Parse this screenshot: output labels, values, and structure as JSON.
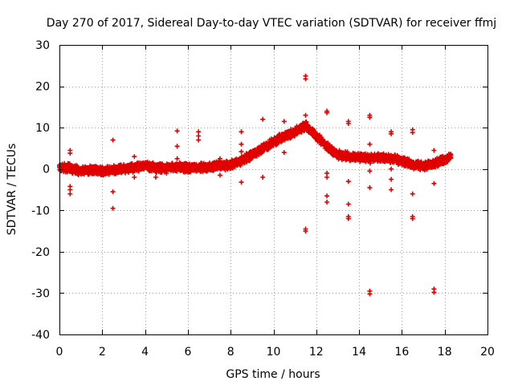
{
  "chart_data": {
    "type": "scatter",
    "title": "Day 270 of 2017, Sidereal Day-to-day VTEC variation (SDTVAR) for receiver ffmj",
    "xlabel": "GPS time / hours",
    "ylabel": "SDTVAR / TECUs",
    "xlim": [
      0,
      20
    ],
    "ylim": [
      -40,
      30
    ],
    "xticks": [
      "0",
      "2",
      "4",
      "6",
      "8",
      "10",
      "12",
      "14",
      "16",
      "18",
      "20"
    ],
    "yticks": [
      "30",
      "20",
      "10",
      "0",
      "-10",
      "-20",
      "-30",
      "-40"
    ],
    "grid": true,
    "marker": "+",
    "color": "#e00000",
    "series": [
      {
        "name": "SDTVAR",
        "trend": [
          [
            0.0,
            0.5
          ],
          [
            0.5,
            0.2
          ],
          [
            1.0,
            -0.5
          ],
          [
            1.5,
            -0.3
          ],
          [
            2.0,
            -0.6
          ],
          [
            2.5,
            -0.2
          ],
          [
            3.0,
            0.0
          ],
          [
            3.5,
            0.3
          ],
          [
            4.0,
            0.8
          ],
          [
            4.5,
            0.3
          ],
          [
            5.0,
            0.2
          ],
          [
            5.5,
            0.5
          ],
          [
            6.0,
            0.3
          ],
          [
            6.5,
            0.4
          ],
          [
            7.0,
            0.5
          ],
          [
            7.5,
            0.8
          ],
          [
            8.0,
            1.0
          ],
          [
            8.5,
            2.0
          ],
          [
            9.0,
            3.5
          ],
          [
            9.5,
            5.0
          ],
          [
            10.0,
            6.5
          ],
          [
            10.5,
            8.0
          ],
          [
            11.0,
            9.0
          ],
          [
            11.5,
            10.5
          ],
          [
            11.9,
            8.5
          ],
          [
            12.3,
            6.5
          ],
          [
            12.7,
            4.5
          ],
          [
            13.0,
            3.5
          ],
          [
            13.5,
            3.0
          ],
          [
            14.0,
            2.8
          ],
          [
            14.5,
            2.5
          ],
          [
            15.0,
            2.7
          ],
          [
            15.5,
            2.5
          ],
          [
            16.0,
            2.0
          ],
          [
            16.5,
            1.0
          ],
          [
            17.0,
            0.8
          ],
          [
            17.5,
            1.2
          ],
          [
            18.0,
            2.2
          ],
          [
            18.3,
            2.8
          ]
        ],
        "outliers": [
          [
            0.5,
            4.5
          ],
          [
            0.5,
            3.8
          ],
          [
            0.5,
            -5.0
          ],
          [
            0.5,
            -6.0
          ],
          [
            0.5,
            -4.2
          ],
          [
            2.5,
            7.0
          ],
          [
            2.5,
            -5.5
          ],
          [
            2.5,
            -9.5
          ],
          [
            3.5,
            3.0
          ],
          [
            3.5,
            -2.0
          ],
          [
            4.5,
            -2.0
          ],
          [
            5.0,
            -1.0
          ],
          [
            5.5,
            9.2
          ],
          [
            5.5,
            5.5
          ],
          [
            5.5,
            2.5
          ],
          [
            6.5,
            9.0
          ],
          [
            6.5,
            8.0
          ],
          [
            6.5,
            7.0
          ],
          [
            7.5,
            2.5
          ],
          [
            7.5,
            -1.5
          ],
          [
            8.5,
            9.0
          ],
          [
            8.5,
            6.0
          ],
          [
            8.5,
            4.2
          ],
          [
            8.5,
            -3.2
          ],
          [
            9.5,
            12.0
          ],
          [
            9.5,
            -2.0
          ],
          [
            10.5,
            11.5
          ],
          [
            10.5,
            4.0
          ],
          [
            11.5,
            22.5
          ],
          [
            11.5,
            21.8
          ],
          [
            11.5,
            13.0
          ],
          [
            11.5,
            -14.5
          ],
          [
            11.5,
            -15.0
          ],
          [
            12.5,
            14.0
          ],
          [
            12.5,
            13.6
          ],
          [
            12.5,
            -1.0
          ],
          [
            12.5,
            -2.0
          ],
          [
            12.5,
            -6.5
          ],
          [
            12.5,
            -8.0
          ],
          [
            13.5,
            11.5
          ],
          [
            13.5,
            11.0
          ],
          [
            13.5,
            -3.0
          ],
          [
            13.5,
            -8.5
          ],
          [
            13.5,
            -11.5
          ],
          [
            13.5,
            -12.0
          ],
          [
            14.5,
            13.0
          ],
          [
            14.5,
            12.5
          ],
          [
            14.5,
            6.0
          ],
          [
            14.5,
            -0.5
          ],
          [
            14.5,
            -4.5
          ],
          [
            14.5,
            -29.5
          ],
          [
            14.5,
            -30.2
          ],
          [
            15.5,
            9.0
          ],
          [
            15.5,
            8.5
          ],
          [
            15.5,
            0.0
          ],
          [
            15.5,
            -2.5
          ],
          [
            15.5,
            -5.0
          ],
          [
            16.5,
            9.5
          ],
          [
            16.5,
            8.8
          ],
          [
            16.5,
            -6.0
          ],
          [
            16.5,
            -11.5
          ],
          [
            16.5,
            -12.0
          ],
          [
            17.5,
            4.5
          ],
          [
            17.5,
            -3.5
          ],
          [
            17.5,
            -29.0
          ],
          [
            17.5,
            -29.8
          ]
        ]
      }
    ]
  }
}
